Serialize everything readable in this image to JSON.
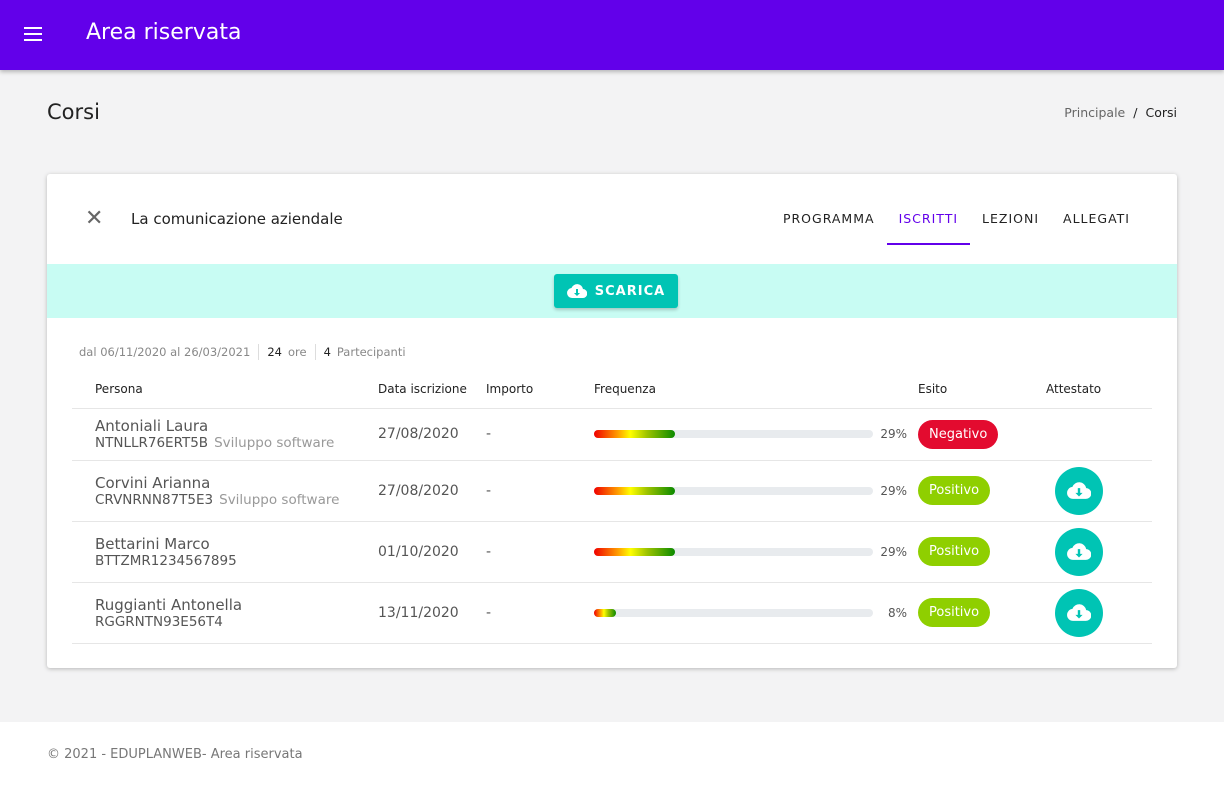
{
  "header": {
    "title": "Area riservata"
  },
  "page": {
    "title": "Corsi",
    "breadcrumb": [
      "Principale",
      "Corsi"
    ]
  },
  "course": {
    "name": "La comunicazione aziendale",
    "tabs": [
      "PROGRAMMA",
      "ISCRITTI",
      "LEZIONI",
      "ALLEGATI"
    ],
    "active_tab": "ISCRITTI",
    "download_label": "SCARICA",
    "meta": {
      "period": "dal 06/11/2020 al 26/03/2021",
      "hours": "24",
      "hours_label": "ore",
      "participants": "4",
      "participants_label": "Partecipanti"
    }
  },
  "table": {
    "headers": [
      "Persona",
      "Data iscrizione",
      "Importo",
      "Frequenza",
      "Esito",
      "Attestato"
    ],
    "rows": [
      {
        "name": "Antoniali Laura",
        "code": "NTNLLR76ERT5B",
        "dept": "Sviluppo software",
        "date": "27/08/2020",
        "amount": "-",
        "freq": 29,
        "freq_label": "29%",
        "result": "Negativo",
        "certificate": false
      },
      {
        "name": "Corvini Arianna",
        "code": "CRVNRNN87T5E3",
        "dept": "Sviluppo software",
        "date": "27/08/2020",
        "amount": "-",
        "freq": 29,
        "freq_label": "29%",
        "result": "Positivo",
        "certificate": true
      },
      {
        "name": "Bettarini Marco",
        "code": "BTTZMR1234567895",
        "dept": "",
        "date": "01/10/2020",
        "amount": "-",
        "freq": 29,
        "freq_label": "29%",
        "result": "Positivo",
        "certificate": true
      },
      {
        "name": "Ruggianti Antonella",
        "code": "RGGRNTN93E56T4",
        "dept": "",
        "date": "13/11/2020",
        "amount": "-",
        "freq": 8,
        "freq_label": "8%",
        "result": "Positivo",
        "certificate": true
      }
    ]
  },
  "footer": {
    "text": "© 2021 - EDUPLANWEB- Area riservata"
  },
  "colors": {
    "primary": "#6200ea",
    "teal": "#00c4b4",
    "negative": "#e30b2f",
    "positive": "#8fcf00"
  }
}
